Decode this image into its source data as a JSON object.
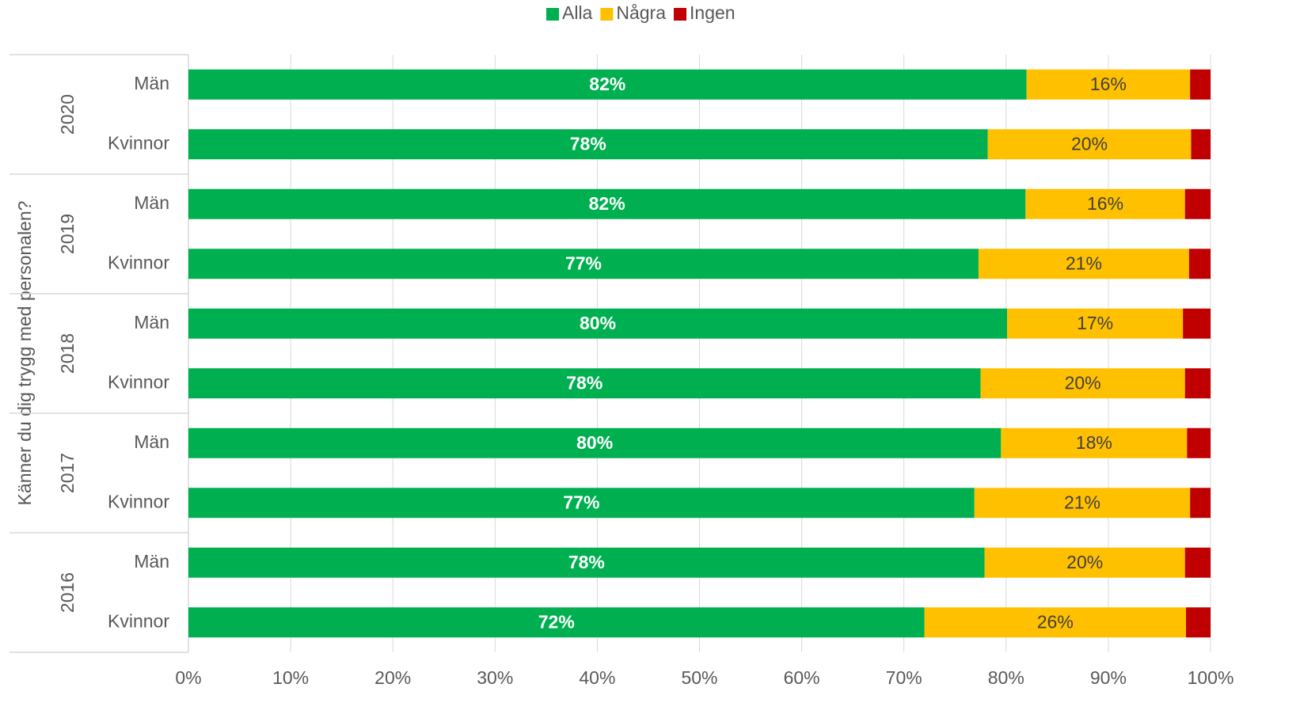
{
  "chart_data": {
    "type": "stacked-bar-horizontal",
    "y_axis_label": "Känner du dig trygg med personalen?",
    "groups": [
      "2020",
      "2019",
      "2018",
      "2017",
      "2016"
    ],
    "categories": [
      "Män",
      "Kvinnor",
      "Män",
      "Kvinnor",
      "Män",
      "Kvinnor",
      "Män",
      "Kvinnor",
      "Män",
      "Kvinnor"
    ],
    "series": [
      {
        "name": "Alla",
        "color": "#00b050",
        "label_color": "#ffffff",
        "label_bold": true,
        "values": [
          82.0,
          78.2,
          81.9,
          77.3,
          80.1,
          77.5,
          79.5,
          76.9,
          77.9,
          72.0
        ],
        "value_labels": [
          "82%",
          "78%",
          "82%",
          "77%",
          "80%",
          "78%",
          "80%",
          "77%",
          "78%",
          "72%"
        ]
      },
      {
        "name": "Några",
        "color": "#ffc000",
        "label_color": "#404040",
        "label_bold": false,
        "values": [
          16.0,
          19.9,
          15.6,
          20.6,
          17.2,
          20.0,
          18.2,
          21.1,
          19.6,
          25.6
        ],
        "value_labels": [
          "16%",
          "20%",
          "16%",
          "21%",
          "17%",
          "20%",
          "18%",
          "21%",
          "20%",
          "26%"
        ]
      },
      {
        "name": "Ingen",
        "color": "#c00000",
        "values": [
          2.0,
          1.9,
          2.5,
          2.1,
          2.7,
          2.5,
          2.3,
          2.0,
          2.5,
          2.4
        ]
      }
    ],
    "xlim": [
      0,
      100
    ],
    "xticks": [
      {
        "value": 0,
        "label": "0%"
      },
      {
        "value": 10,
        "label": "10%"
      },
      {
        "value": 20,
        "label": "20%"
      },
      {
        "value": 30,
        "label": "30%"
      },
      {
        "value": 40,
        "label": "40%"
      },
      {
        "value": 50,
        "label": "50%"
      },
      {
        "value": 60,
        "label": "60%"
      },
      {
        "value": 70,
        "label": "70%"
      },
      {
        "value": 80,
        "label": "80%"
      },
      {
        "value": 90,
        "label": "90%"
      },
      {
        "value": 100,
        "label": "100%"
      }
    ],
    "grid": true,
    "legend": "top"
  }
}
